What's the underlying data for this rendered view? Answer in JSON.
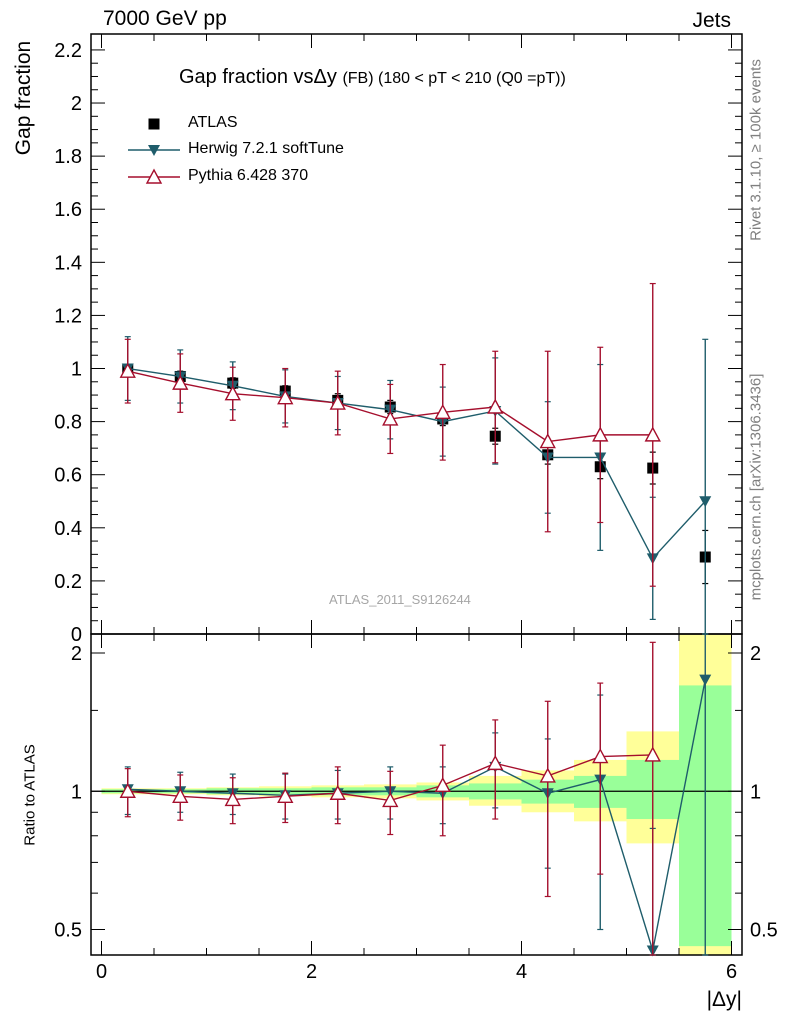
{
  "header": {
    "left": "7000 GeV pp",
    "right": "Jets"
  },
  "side_labels": {
    "upper": "Rivet 3.1.10, ≥ 100k events",
    "lower": "mcplots.cern.ch [arXiv:1306.3436]"
  },
  "chart_data": [
    {
      "type": "scatter",
      "panel": "main",
      "title": "Gap fraction vsΔy",
      "subtitle": "(FB) (180 < pT < 210 (Q0 =pT))",
      "ylabel": "Gap fraction",
      "xlabel": "|Δy|",
      "watermark": "ATLAS_2011_S9126244",
      "xlim": [
        -0.1,
        6.1
      ],
      "ylim": [
        0,
        2.26
      ],
      "yticks": [
        0,
        0.2,
        0.4,
        0.6,
        0.8,
        1,
        1.2,
        1.4,
        1.6,
        1.8,
        2,
        2.2
      ],
      "ytick_labels": [
        "0",
        "0.2",
        "0.4",
        "0.6",
        "0.8",
        "1",
        "1.2",
        "1.4",
        "1.6",
        "1.8",
        "2",
        "2.2"
      ],
      "legend_position": "top-left",
      "x": [
        0.25,
        0.75,
        1.25,
        1.75,
        2.25,
        2.75,
        3.25,
        3.75,
        4.25,
        4.75,
        5.25,
        5.75
      ],
      "series": [
        {
          "name": "ATLAS",
          "color": "#000000",
          "marker": "square",
          "values": [
            0.995,
            0.97,
            0.945,
            0.915,
            0.88,
            0.855,
            0.81,
            0.745,
            0.675,
            0.63,
            0.625,
            0.29
          ],
          "err": [
            0.02,
            0.02,
            0.02,
            0.02,
            0.025,
            0.025,
            0.025,
            0.03,
            0.035,
            0.045,
            0.06,
            0.1
          ]
        },
        {
          "name": "Herwig 7.2.1 softTune",
          "color": "#1f5d6b",
          "marker": "triangle-down",
          "values": [
            1.0,
            0.97,
            0.935,
            0.895,
            0.87,
            0.845,
            0.8,
            0.84,
            0.665,
            0.665,
            0.285,
            0.5
          ],
          "err": [
            0.12,
            0.1,
            0.09,
            0.1,
            0.1,
            0.11,
            0.13,
            0.2,
            0.21,
            0.35,
            0.23,
            0.61
          ]
        },
        {
          "name": "Pythia 6.428 370",
          "color": "#a50f2d",
          "marker": "triangle-up-open",
          "values": [
            0.99,
            0.945,
            0.905,
            0.89,
            0.87,
            0.81,
            0.835,
            0.855,
            0.725,
            0.75,
            0.75,
            null
          ],
          "err": [
            0.12,
            0.11,
            0.1,
            0.11,
            0.12,
            0.13,
            0.18,
            0.21,
            0.34,
            0.33,
            0.57,
            null
          ]
        }
      ]
    },
    {
      "type": "scatter",
      "panel": "ratio",
      "ylabel": "Ratio to ATLAS",
      "xlabel": "|Δy|",
      "xlim": [
        -0.1,
        6.1
      ],
      "ylim": [
        0.44,
        2.2
      ],
      "yscale": "log",
      "xticks": [
        0,
        2,
        4,
        6
      ],
      "xtick_labels": [
        "0",
        "2",
        "4",
        "6"
      ],
      "yticks": [
        0.5,
        1,
        2
      ],
      "ytick_labels": [
        "0.5",
        "1",
        "2"
      ],
      "x": [
        0.25,
        0.75,
        1.25,
        1.75,
        2.25,
        2.75,
        3.25,
        3.75,
        4.25,
        4.75,
        5.25,
        5.75
      ],
      "band_stat": [
        [
          0.99,
          1.01
        ],
        [
          0.99,
          1.01
        ],
        [
          0.985,
          1.015
        ],
        [
          0.985,
          1.015
        ],
        [
          0.98,
          1.02
        ],
        [
          0.98,
          1.02
        ],
        [
          0.97,
          1.03
        ],
        [
          0.96,
          1.04
        ],
        [
          0.94,
          1.06
        ],
        [
          0.92,
          1.08
        ],
        [
          0.87,
          1.17
        ],
        [
          0.46,
          1.7
        ]
      ],
      "band_total": [
        [
          0.985,
          1.015
        ],
        [
          0.985,
          1.015
        ],
        [
          0.98,
          1.02
        ],
        [
          0.975,
          1.025
        ],
        [
          0.97,
          1.03
        ],
        [
          0.965,
          1.035
        ],
        [
          0.955,
          1.045
        ],
        [
          0.93,
          1.08
        ],
        [
          0.9,
          1.11
        ],
        [
          0.86,
          1.17
        ],
        [
          0.77,
          1.35
        ],
        [
          0.37,
          2.3
        ]
      ],
      "series": [
        {
          "name": "Herwig 7.2.1 softTune",
          "color": "#1f5d6b",
          "marker": "triangle-down",
          "values": [
            1.01,
            1.0,
            0.99,
            0.98,
            0.99,
            1.0,
            0.99,
            1.13,
            0.99,
            1.06,
            0.45,
            1.75
          ],
          "err": [
            0.12,
            0.1,
            0.1,
            0.11,
            0.12,
            0.13,
            0.14,
            0.21,
            0.31,
            0.56,
            0.38,
            2.1
          ]
        },
        {
          "name": "Pythia 6.428 370",
          "color": "#a50f2d",
          "marker": "triangle-up-open",
          "values": [
            1.0,
            0.975,
            0.96,
            0.975,
            0.99,
            0.955,
            1.03,
            1.15,
            1.08,
            1.19,
            1.2,
            null
          ],
          "err": [
            0.12,
            0.11,
            0.11,
            0.12,
            0.14,
            0.15,
            0.23,
            0.28,
            0.49,
            0.53,
            0.91,
            null
          ]
        }
      ]
    }
  ]
}
